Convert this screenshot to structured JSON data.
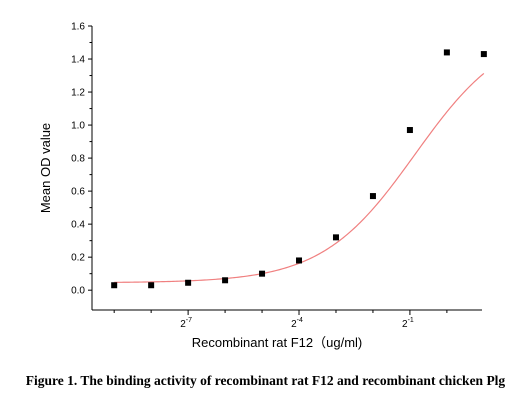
{
  "chart_data": {
    "type": "scatter",
    "xlabel": "Recombinant rat F12（ug/ml)",
    "ylabel": "Mean OD value",
    "x_scale": "log2",
    "x_tick_labels": [
      "2-7",
      "2-4",
      "2-1"
    ],
    "y_ticks": [
      "0.0",
      "0.2",
      "0.4",
      "0.6",
      "0.8",
      "1.0",
      "1.2",
      "1.4",
      "1.6"
    ],
    "ylim": [
      -0.12,
      1.6
    ],
    "xlim_log2": [
      -9.6,
      0.95
    ],
    "grid": false,
    "legend": "none",
    "series": [
      {
        "x": [
          0.001953,
          0.003906,
          0.007813,
          0.015625,
          0.03125,
          0.0625,
          0.125,
          0.25,
          0.5,
          1,
          2
        ],
        "y": [
          0.03,
          0.03,
          0.045,
          0.06,
          0.1,
          0.18,
          0.32,
          0.57,
          0.97,
          1.44,
          1.43
        ]
      }
    ],
    "fit_curve": {
      "model": "4PL",
      "bottom": 0.045,
      "top": 1.6,
      "ec50": 0.55,
      "hill": 1.15
    },
    "colors": {
      "points": "#000000",
      "fit": "#f08080",
      "axis": "#000000"
    }
  },
  "caption": "Figure 1. The binding activity of recombinant rat F12 and recombinant chicken Plg"
}
